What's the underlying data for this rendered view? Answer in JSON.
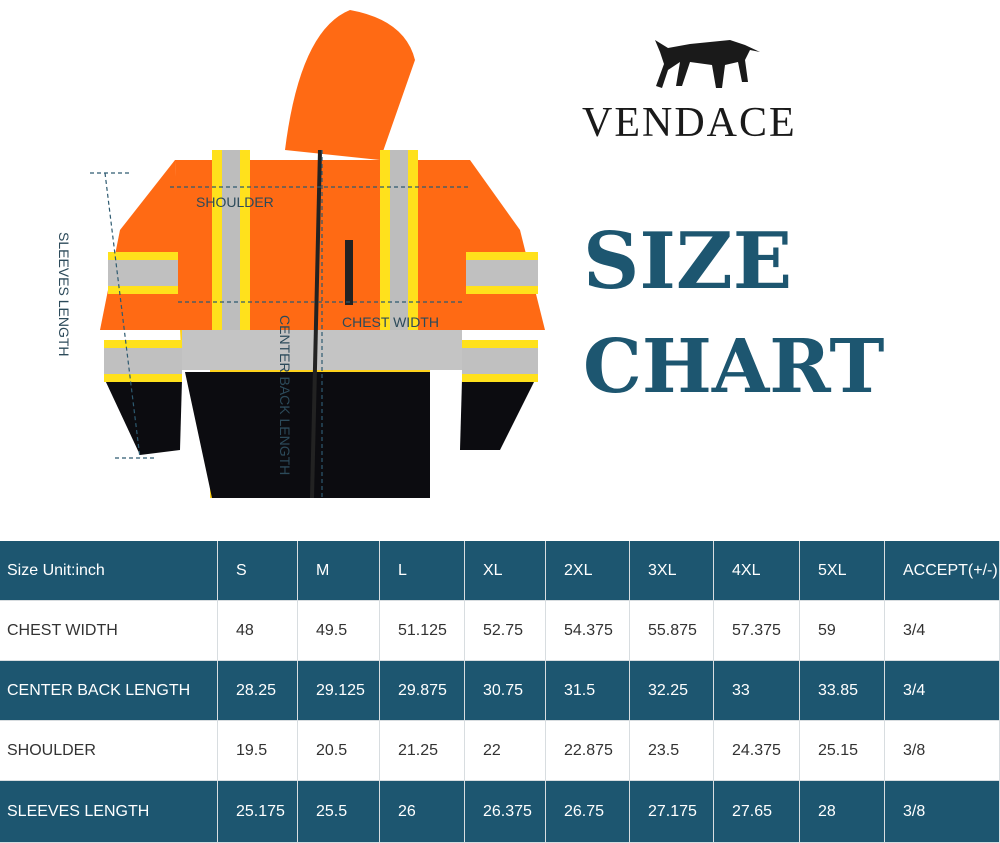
{
  "brand": "VENDACE",
  "headline": {
    "line1": "SIZE",
    "line2": "CHART"
  },
  "measure_labels": {
    "shoulder": "SHOULDER",
    "chest": "CHEST WIDTH",
    "back": "CENTER BACK LENGTH",
    "sleeves": "SLEEVES LENGTH"
  },
  "table": {
    "header": [
      "Size  Unit:inch",
      "S",
      "M",
      "L",
      "XL",
      "2XL",
      "3XL",
      "4XL",
      "5XL",
      "ACCEPT(+/-)"
    ],
    "rows": [
      [
        "CHEST WIDTH",
        "48",
        "49.5",
        "51.125",
        "52.75",
        "54.375",
        "55.875",
        "57.375",
        "59",
        "3/4"
      ],
      [
        "CENTER BACK LENGTH",
        "28.25",
        "29.125",
        "29.875",
        "30.75",
        "31.5",
        "32.25",
        "33",
        "33.85",
        "3/4"
      ],
      [
        "SHOULDER",
        "19.5",
        "20.5",
        "21.25",
        "22",
        "22.875",
        "23.5",
        "24.375",
        "25.15",
        "3/8"
      ],
      [
        "SLEEVES LENGTH",
        "25.175",
        "25.5",
        "26",
        "26.375",
        "26.75",
        "27.175",
        "27.65",
        "28",
        "3/8"
      ]
    ]
  }
}
